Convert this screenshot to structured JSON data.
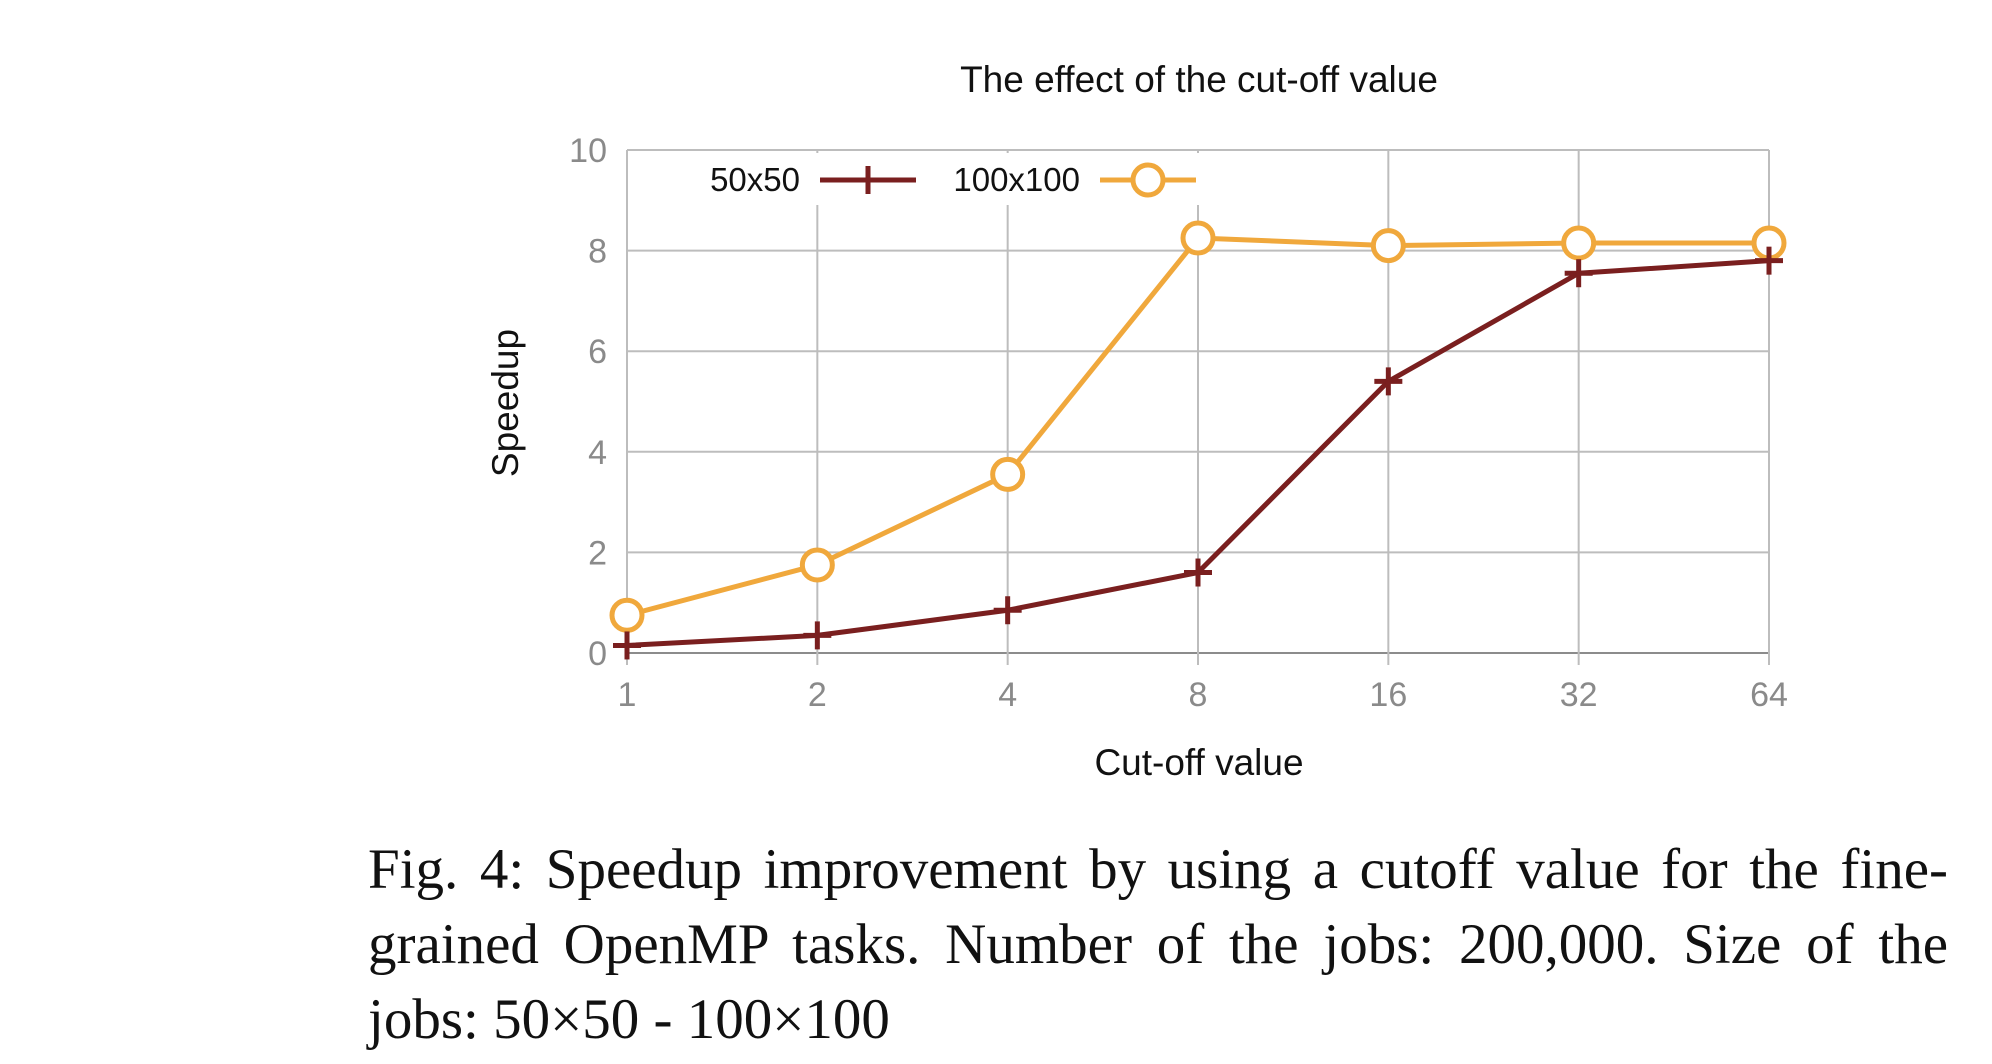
{
  "chart_data": {
    "type": "line",
    "title": "The effect of the cut-off value",
    "xlabel": "Cut-off value",
    "ylabel": "Speedup",
    "x": [
      "1",
      "2",
      "4",
      "8",
      "16",
      "32",
      "64"
    ],
    "xscale": "log2",
    "ylim": [
      0,
      10
    ],
    "yticks": [
      "0",
      "2",
      "4",
      "6",
      "8",
      "10"
    ],
    "grid": true,
    "legend": "top-left, inside plot",
    "series": [
      {
        "name": "50x50",
        "marker": "plus",
        "color": "#7a1f1f",
        "values": [
          0.15,
          0.35,
          0.85,
          1.6,
          5.4,
          7.55,
          7.8
        ]
      },
      {
        "name": "100x100",
        "marker": "circle",
        "color": "#f0a83c",
        "values": [
          0.75,
          1.75,
          3.55,
          8.25,
          8.1,
          8.15,
          8.15
        ]
      }
    ]
  },
  "caption": "Fig. 4:  Speedup improvement by using a cutoff value for the fine-grained OpenMP tasks. Number of the jobs: 200,000. Size of the jobs: 50×50 - 100×100"
}
